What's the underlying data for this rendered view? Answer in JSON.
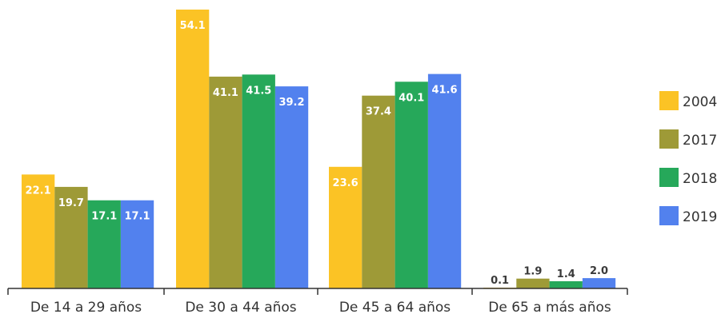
{
  "chart_data": {
    "type": "bar",
    "categories": [
      "De 14 a 29 años",
      "De 30 a 44 años",
      "De 45 a 64 años",
      "De 65 a más años"
    ],
    "series": [
      {
        "name": "2004",
        "values": [
          22.1,
          54.1,
          23.6,
          0.1
        ],
        "labels": [
          "22.1",
          "54.1",
          "23.6",
          "0.1"
        ],
        "color": "#FBC325"
      },
      {
        "name": "2017",
        "values": [
          19.7,
          41.1,
          37.4,
          1.9
        ],
        "labels": [
          "19.7",
          "41.1",
          "37.4",
          "1.9"
        ],
        "color": "#9E9A37"
      },
      {
        "name": "2018",
        "values": [
          17.1,
          41.5,
          40.1,
          1.4
        ],
        "labels": [
          "17.1",
          "41.5",
          "40.1",
          "1.4"
        ],
        "color": "#26A85A"
      },
      {
        "name": "2019",
        "values": [
          17.1,
          39.2,
          41.6,
          2.0
        ],
        "labels": [
          "17.1",
          "39.2",
          "41.6",
          "2.0"
        ],
        "color": "#5281EE"
      }
    ],
    "ylim": [
      0,
      54.1
    ],
    "legend_position": "right",
    "grid": false
  }
}
